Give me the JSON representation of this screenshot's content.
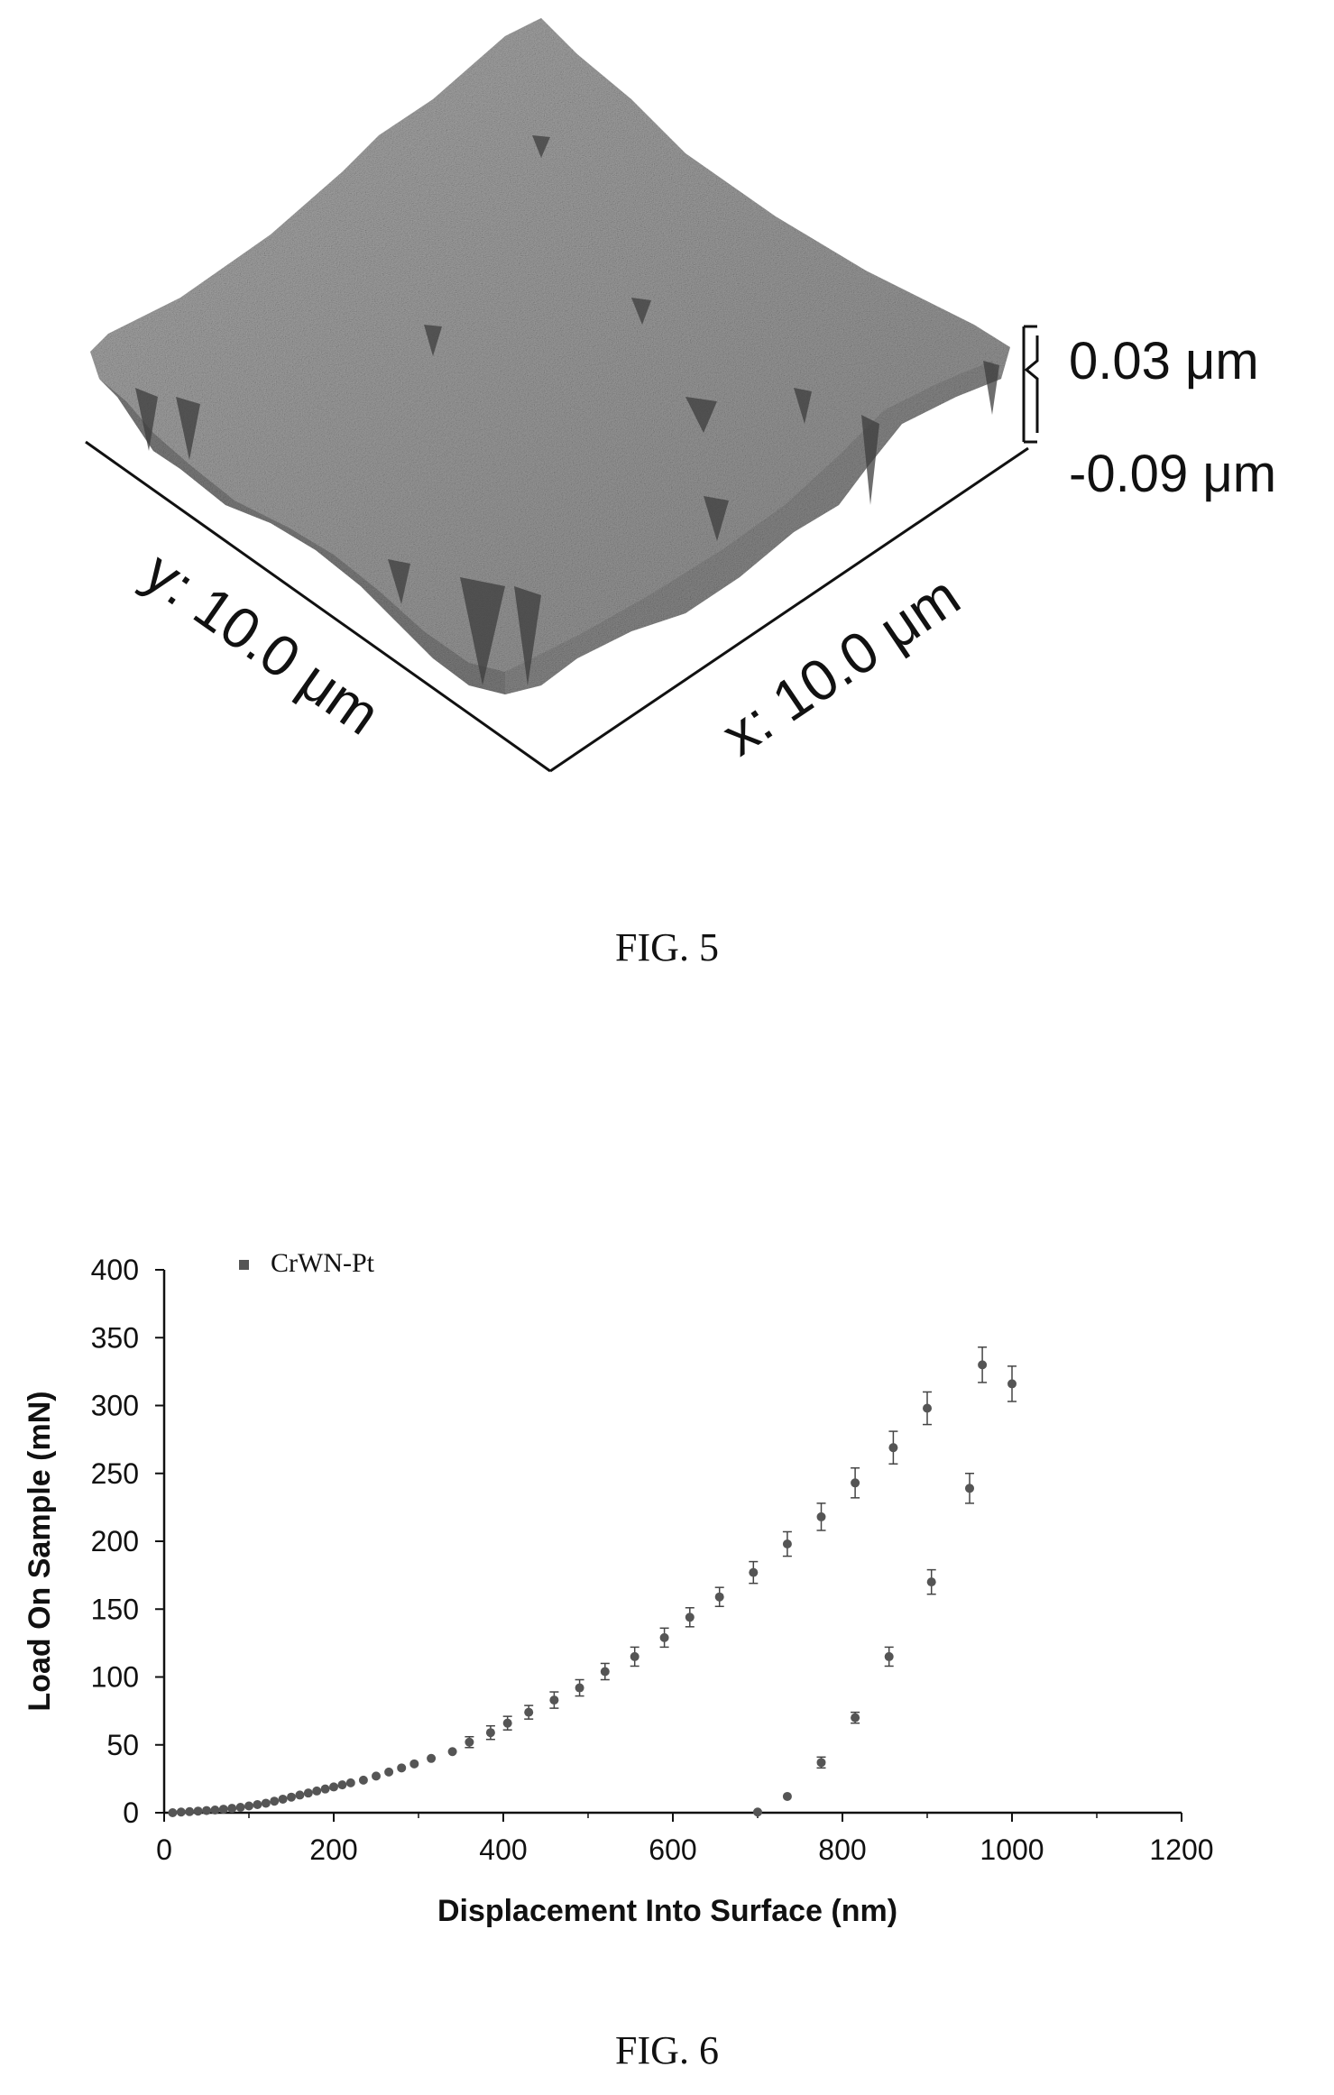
{
  "figure5": {
    "caption": "FIG. 5",
    "z_max_label": "0.03 μm",
    "z_min_label": "-0.09 μm",
    "x_label": "x: 10.0 μm",
    "y_label": "y: 10.0 μm"
  },
  "figure6": {
    "caption": "FIG. 6"
  },
  "chart_data": {
    "type": "scatter",
    "title": "",
    "xlabel": "Displacement Into Surface (nm)",
    "ylabel": "Load On Sample (mN)",
    "xlim": [
      0,
      1200
    ],
    "ylim": [
      0,
      400
    ],
    "xticks": [
      0,
      200,
      400,
      600,
      800,
      1000,
      1200
    ],
    "yticks": [
      0,
      50,
      100,
      150,
      200,
      250,
      300,
      350,
      400
    ],
    "grid": false,
    "legend": "top-left",
    "series": [
      {
        "name": "CrWN-Pt",
        "color": "#555555",
        "loading": [
          [
            10,
            0
          ],
          [
            20,
            0.5
          ],
          [
            30,
            0.8
          ],
          [
            40,
            1.2
          ],
          [
            50,
            1.6
          ],
          [
            60,
            2
          ],
          [
            70,
            2.6
          ],
          [
            80,
            3.2
          ],
          [
            90,
            4
          ],
          [
            100,
            5
          ],
          [
            110,
            6
          ],
          [
            120,
            7
          ],
          [
            130,
            8.5
          ],
          [
            140,
            10
          ],
          [
            150,
            11.5
          ],
          [
            160,
            13
          ],
          [
            170,
            14.5
          ],
          [
            180,
            16
          ],
          [
            190,
            17.5
          ],
          [
            200,
            19
          ],
          [
            210,
            20.5
          ],
          [
            220,
            22
          ],
          [
            235,
            24
          ],
          [
            250,
            27
          ],
          [
            265,
            30
          ],
          [
            280,
            33
          ],
          [
            295,
            36
          ],
          [
            315,
            40
          ],
          [
            340,
            45
          ],
          [
            360,
            52
          ],
          [
            385,
            59
          ],
          [
            405,
            66
          ],
          [
            430,
            74
          ],
          [
            460,
            83
          ],
          [
            490,
            92
          ],
          [
            520,
            104
          ],
          [
            555,
            115
          ],
          [
            590,
            129
          ],
          [
            620,
            144
          ],
          [
            655,
            159
          ],
          [
            695,
            177
          ],
          [
            735,
            198
          ],
          [
            775,
            218
          ],
          [
            815,
            243
          ],
          [
            860,
            269
          ],
          [
            900,
            298
          ],
          [
            965,
            330
          ],
          [
            1000,
            316
          ]
        ],
        "unloading": [
          [
            700,
            0.5
          ],
          [
            735,
            12
          ],
          [
            775,
            37
          ],
          [
            815,
            70
          ],
          [
            855,
            115
          ],
          [
            905,
            170
          ],
          [
            950,
            239
          ]
        ],
        "error_bars": [
          [
            360,
            4
          ],
          [
            385,
            5
          ],
          [
            405,
            5
          ],
          [
            430,
            5
          ],
          [
            460,
            6
          ],
          [
            490,
            6
          ],
          [
            520,
            6
          ],
          [
            555,
            7
          ],
          [
            590,
            7
          ],
          [
            620,
            7
          ],
          [
            655,
            7
          ],
          [
            695,
            8
          ],
          [
            735,
            9
          ],
          [
            775,
            10
          ],
          [
            815,
            11
          ],
          [
            860,
            12
          ],
          [
            900,
            12
          ],
          [
            965,
            13
          ],
          [
            1000,
            13
          ],
          [
            775,
            4
          ],
          [
            815,
            4
          ],
          [
            855,
            7
          ],
          [
            905,
            9
          ],
          [
            950,
            11
          ]
        ]
      }
    ]
  }
}
